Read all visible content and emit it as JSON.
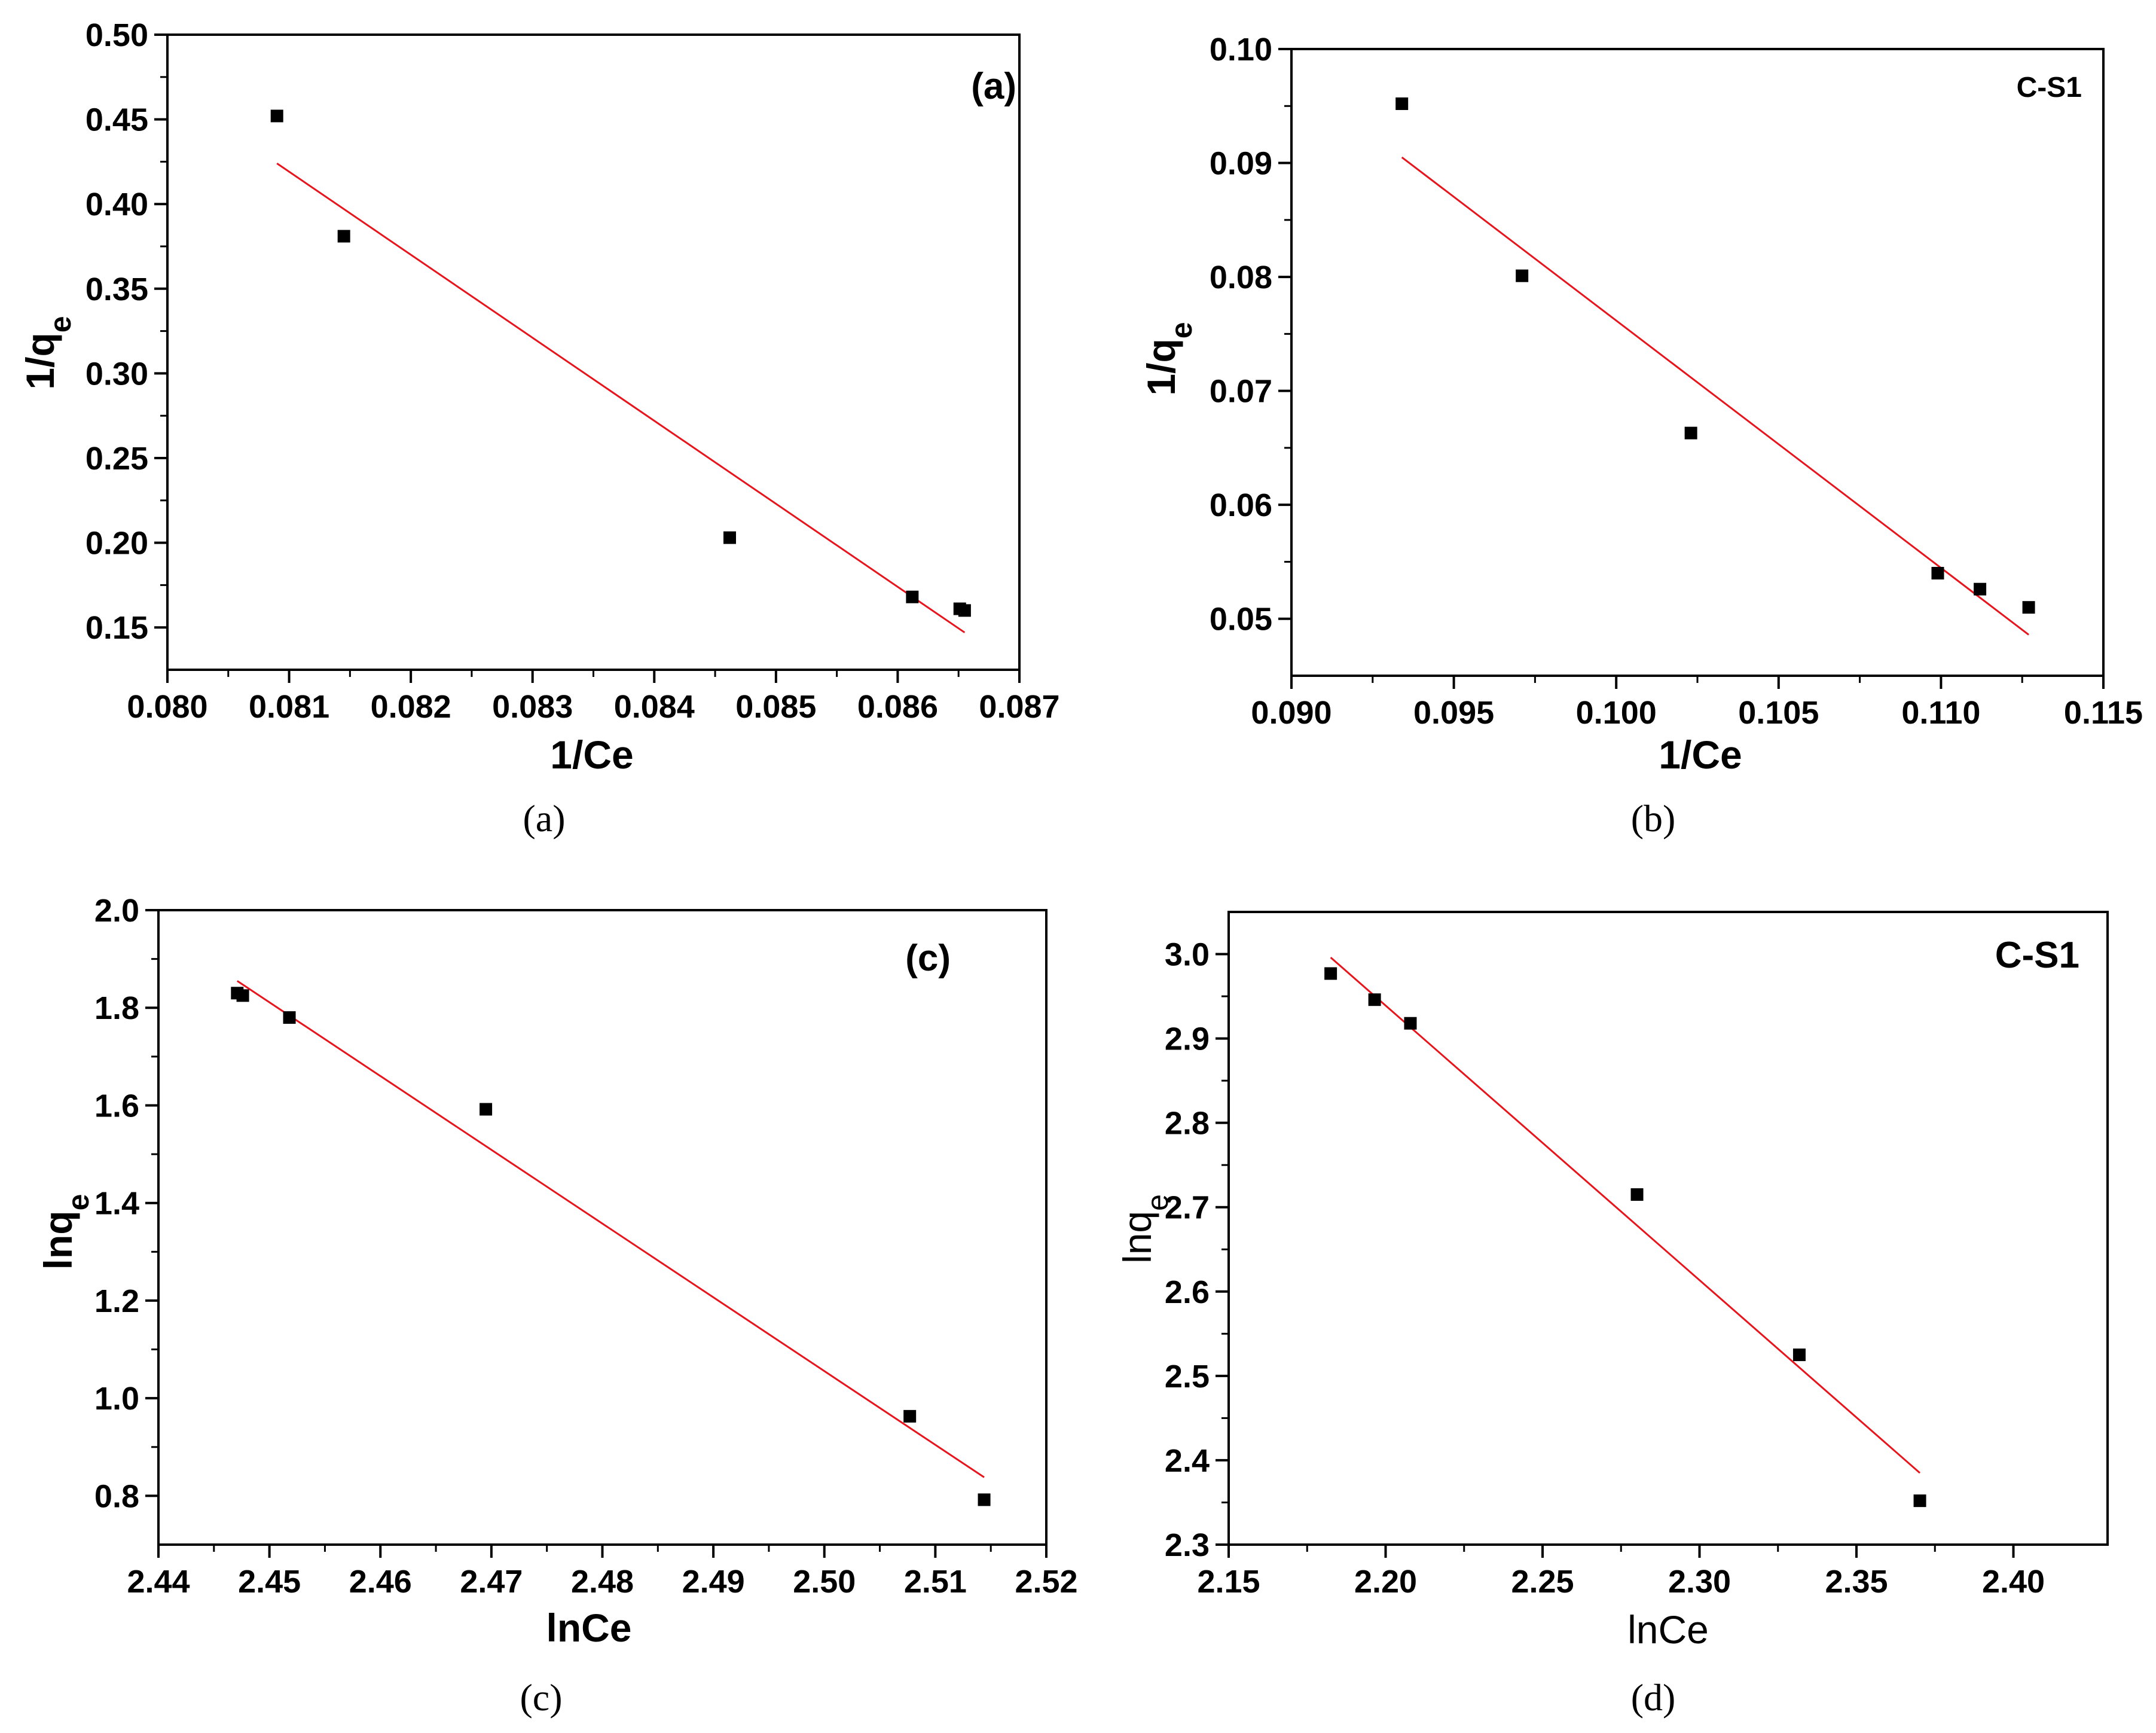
{
  "chart_data": [
    {
      "id": "a",
      "type": "scatter",
      "caption": "(a)",
      "panel_label": "(a)",
      "xlabel": "1/Ce",
      "ylabel": "1/q",
      "ylabel_sub": "e",
      "xlim": [
        0.08,
        0.087
      ],
      "ylim": [
        0.125,
        0.5
      ],
      "xticks": [
        "0.080",
        "0.081",
        "0.082",
        "0.083",
        "0.084",
        "0.085",
        "0.086",
        "0.087"
      ],
      "xtick_values": [
        0.08,
        0.081,
        0.082,
        0.083,
        0.084,
        0.085,
        0.086,
        0.087
      ],
      "yticks": [
        "0.15",
        "0.20",
        "0.25",
        "0.30",
        "0.35",
        "0.40",
        "0.45",
        "0.50"
      ],
      "ytick_values": [
        0.15,
        0.2,
        0.25,
        0.3,
        0.35,
        0.4,
        0.45,
        0.5
      ],
      "points": {
        "x": [
          0.0809,
          0.08145,
          0.08462,
          0.08612,
          0.08651,
          0.08655
        ],
        "y": [
          0.452,
          0.381,
          0.203,
          0.168,
          0.161,
          0.16
        ]
      },
      "fit_line": {
        "x": [
          0.0809,
          0.08655
        ],
        "y": [
          0.424,
          0.147
        ]
      }
    },
    {
      "id": "b",
      "type": "scatter",
      "caption": "(b)",
      "panel_label": "C-S1",
      "xlabel": "1/Ce",
      "ylabel": "1/q",
      "ylabel_sub": "e",
      "xlim": [
        0.09,
        0.115
      ],
      "ylim": [
        0.045,
        0.1
      ],
      "xticks": [
        "0.090",
        "0.095",
        "0.100",
        "0.105",
        "0.110",
        "0.115"
      ],
      "xtick_values": [
        0.09,
        0.095,
        0.1,
        0.105,
        0.11,
        0.115
      ],
      "yticks": [
        "0.05",
        "0.06",
        "0.07",
        "0.08",
        "0.09",
        "0.10"
      ],
      "ytick_values": [
        0.05,
        0.06,
        0.07,
        0.08,
        0.09,
        0.1
      ],
      "points": {
        "x": [
          0.0934,
          0.0971,
          0.1023,
          0.1099,
          0.1112,
          0.1127
        ],
        "y": [
          0.0952,
          0.0801,
          0.0663,
          0.054,
          0.0526,
          0.051
        ]
      },
      "fit_line": {
        "x": [
          0.0934,
          0.1127
        ],
        "y": [
          0.0905,
          0.0486
        ]
      }
    },
    {
      "id": "c",
      "type": "scatter",
      "caption": "(c)",
      "panel_label": "(c)",
      "xlabel": "lnCe",
      "ylabel": "lnq",
      "ylabel_sub": "e",
      "xlim": [
        2.44,
        2.52
      ],
      "ylim": [
        0.7,
        2.0
      ],
      "xticks": [
        "2.44",
        "2.45",
        "2.46",
        "2.47",
        "2.48",
        "2.49",
        "2.50",
        "2.51",
        "2.52"
      ],
      "xtick_values": [
        2.44,
        2.45,
        2.46,
        2.47,
        2.48,
        2.49,
        2.5,
        2.51,
        2.52
      ],
      "yticks": [
        "0.8",
        "1.0",
        "1.2",
        "1.4",
        "1.6",
        "1.8",
        "2.0"
      ],
      "ytick_values": [
        0.8,
        1.0,
        1.2,
        1.4,
        1.6,
        1.8,
        2.0
      ],
      "points": {
        "x": [
          2.4471,
          2.4476,
          2.4518,
          2.4695,
          2.5077,
          2.5144
        ],
        "y": [
          1.83,
          1.825,
          1.78,
          1.592,
          0.963,
          0.792
        ]
      },
      "fit_line": {
        "x": [
          2.4471,
          2.5144
        ],
        "y": [
          1.855,
          0.838
        ]
      }
    },
    {
      "id": "d",
      "type": "scatter",
      "caption": "(d)",
      "panel_label": "C-S1",
      "xlabel": "lnCe",
      "ylabel": "lnq",
      "ylabel_sub": "e",
      "xlim": [
        2.15,
        2.43
      ],
      "ylim": [
        2.3,
        3.05
      ],
      "xticks": [
        "2.15",
        "2.20",
        "2.25",
        "2.30",
        "2.35",
        "2.40"
      ],
      "xtick_values": [
        2.15,
        2.2,
        2.25,
        2.3,
        2.35,
        2.4
      ],
      "yticks": [
        "2.3",
        "2.4",
        "2.5",
        "2.6",
        "2.7",
        "2.8",
        "2.9",
        "3.0"
      ],
      "ytick_values": [
        2.3,
        2.4,
        2.5,
        2.6,
        2.7,
        2.8,
        2.9,
        3.0
      ],
      "points": {
        "x": [
          2.1825,
          2.1965,
          2.2079,
          2.2801,
          2.3318,
          2.3702
        ],
        "y": [
          2.977,
          2.946,
          2.918,
          2.715,
          2.525,
          2.352
        ]
      },
      "fit_line": {
        "x": [
          2.1825,
          2.3702
        ],
        "y": [
          2.996,
          2.385
        ]
      }
    }
  ]
}
